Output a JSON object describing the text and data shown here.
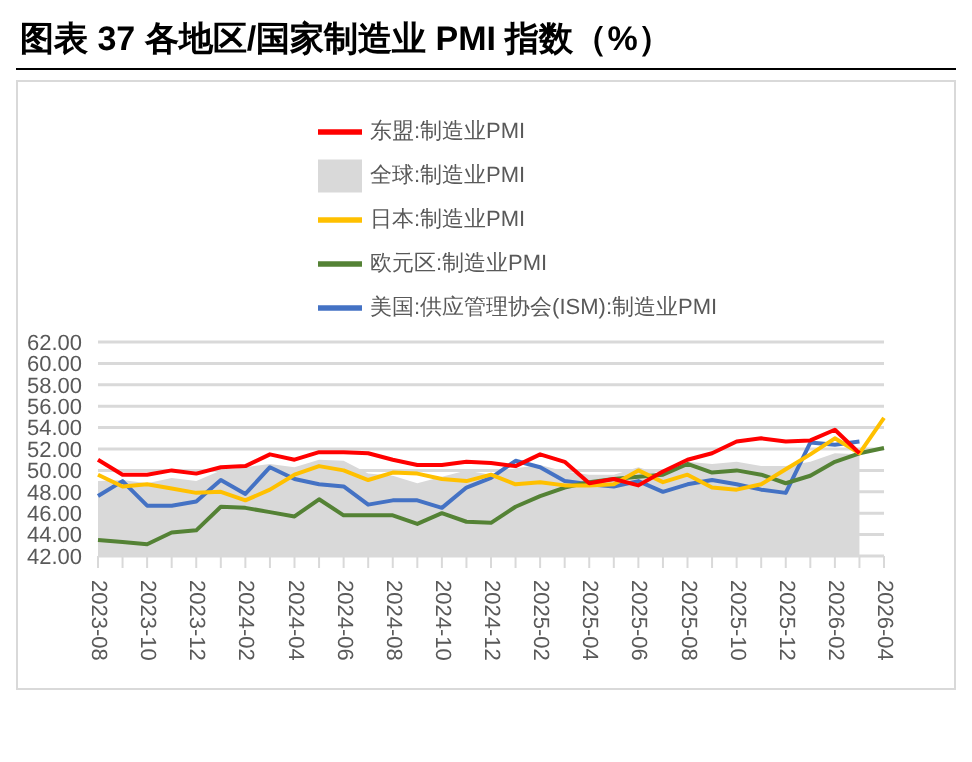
{
  "chart_data": {
    "type": "line",
    "title": "图表 37 各地区/国家制造业 PMI 指数（%）",
    "categories": [
      "2023-08",
      null,
      "2023-10",
      null,
      "2023-12",
      null,
      "2024-02",
      null,
      "2024-04",
      null,
      "2024-06",
      null,
      "2024-08",
      null,
      "2024-10",
      null,
      "2024-12",
      null,
      "2025-02",
      null,
      "2025-04",
      null,
      "2025-06",
      null,
      "2025-08",
      null,
      "2025-10",
      null,
      "2025-12",
      null,
      "2026-02",
      null,
      "2026-04"
    ],
    "series": [
      {
        "name": "全球:制造业PMI",
        "type": "area",
        "color": "#d9d9d9",
        "values": [
          49.0,
          49.1,
          48.8,
          49.3,
          49.0,
          50.0,
          50.3,
          50.6,
          50.3,
          51.0,
          50.9,
          49.7,
          49.5,
          48.8,
          49.4,
          50.0,
          49.6,
          50.2,
          50.5,
          49.9,
          49.6,
          49.6,
          50.3,
          49.6,
          50.8,
          50.6,
          50.8,
          50.4,
          50.4,
          50.8,
          51.6,
          51.5,
          null
        ]
      },
      {
        "name": "美国:供应管理协会(ISM):制造业PMI",
        "color": "#4472c4",
        "values": [
          47.6,
          49.0,
          46.7,
          46.7,
          47.1,
          49.1,
          47.8,
          50.3,
          49.2,
          48.7,
          48.5,
          46.8,
          47.2,
          47.2,
          46.5,
          48.4,
          49.3,
          50.9,
          50.3,
          49.0,
          48.7,
          48.5,
          49.0,
          48.0,
          48.7,
          49.1,
          48.7,
          48.2,
          47.9,
          52.6,
          52.4,
          52.7,
          null
        ]
      },
      {
        "name": "欧元区:制造业PMI",
        "color": "#548235",
        "values": [
          43.5,
          43.3,
          43.1,
          44.2,
          44.4,
          46.6,
          46.5,
          46.1,
          45.7,
          47.3,
          45.8,
          45.8,
          45.8,
          45.0,
          46.0,
          45.2,
          45.1,
          46.6,
          47.6,
          48.4,
          48.9,
          49.2,
          49.4,
          49.6,
          50.6,
          49.8,
          50.0,
          49.6,
          48.8,
          49.5,
          50.8,
          51.6,
          52.1
        ]
      },
      {
        "name": "日本:制造业PMI",
        "color": "#ffc000",
        "values": [
          49.6,
          48.5,
          48.7,
          48.3,
          47.9,
          48.0,
          47.2,
          48.2,
          49.6,
          50.4,
          50.0,
          49.1,
          49.8,
          49.7,
          49.2,
          49.0,
          49.6,
          48.7,
          48.9,
          48.6,
          48.6,
          48.7,
          50.0,
          48.9,
          49.6,
          48.4,
          48.2,
          48.7,
          50.1,
          51.5,
          53.0,
          51.6,
          54.9
        ]
      },
      {
        "name": "东盟:制造业PMI",
        "color": "#ff0000",
        "values": [
          51.0,
          49.6,
          49.6,
          50.0,
          49.7,
          50.3,
          50.4,
          51.5,
          51.0,
          51.7,
          51.7,
          51.6,
          51.0,
          50.5,
          50.5,
          50.8,
          50.7,
          50.4,
          51.5,
          50.8,
          48.8,
          49.2,
          48.6,
          49.9,
          51.0,
          51.6,
          52.7,
          53.0,
          52.7,
          52.8,
          53.8,
          51.6,
          null
        ]
      }
    ],
    "ylim": [
      42,
      62
    ],
    "yticks": [
      {
        "value": 42,
        "label": "42.00"
      },
      {
        "value": 44,
        "label": "44.00"
      },
      {
        "value": 46,
        "label": "46.00"
      },
      {
        "value": 48,
        "label": "48.00"
      },
      {
        "value": 50,
        "label": "50.00"
      },
      {
        "value": 52,
        "label": "52.00"
      },
      {
        "value": 54,
        "label": "54.00"
      },
      {
        "value": 56,
        "label": "56.00"
      },
      {
        "value": 58,
        "label": "58.00"
      },
      {
        "value": 60,
        "label": "60.00"
      },
      {
        "value": 62,
        "label": "62.00"
      }
    ],
    "grid": "y",
    "legend": "top",
    "marker": "none",
    "line_style": "solid"
  }
}
